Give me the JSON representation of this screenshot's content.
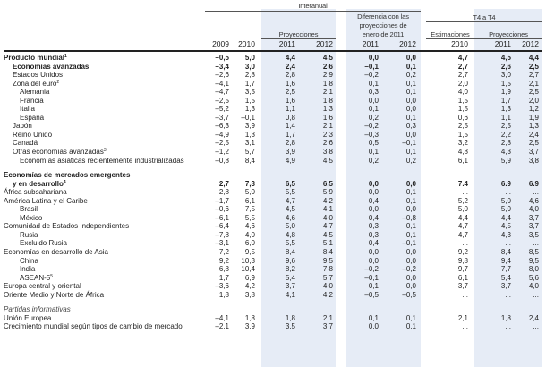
{
  "headers": {
    "interanual": "Interanual",
    "proyecciones_1": "Proyecciones",
    "diferencia_line1": "Diferencia con las",
    "diferencia_line2": "proyecciones de",
    "diferencia_line3": "enero de 2011",
    "t4": "T4 a T4",
    "estimaciones": "Estimaciones",
    "proyecciones_2": "Proyecciones",
    "years": [
      "2009",
      "2010",
      "2011",
      "2012",
      "2011",
      "2012",
      "2010",
      "2011",
      "2012"
    ]
  },
  "colors": {
    "shade": "#e6ecf6",
    "rule": "#222222"
  },
  "rows": [
    {
      "label": "Producto mundial",
      "sup": "1",
      "indent": 0,
      "bold": true,
      "values": [
        "–0,5",
        "5,0",
        "4,4",
        "4,5",
        "0,0",
        "0,0",
        "4,7",
        "4,5",
        "4,4"
      ]
    },
    {
      "label": "Economías avanzadas",
      "indent": 1,
      "bold": true,
      "values": [
        "–3,4",
        "3,0",
        "2,4",
        "2,6",
        "–0,1",
        "0,1",
        "2,7",
        "2,6",
        "2,5"
      ]
    },
    {
      "label": "Estados Unidos",
      "indent": 1,
      "values": [
        "–2,6",
        "2,8",
        "2,8",
        "2,9",
        "–0,2",
        "0,2",
        "2,7",
        "3,0",
        "2,7"
      ]
    },
    {
      "label": "Zona del euro",
      "sup": "2",
      "indent": 1,
      "values": [
        "–4,1",
        "1,7",
        "1,6",
        "1,8",
        "0,1",
        "0,1",
        "2,0",
        "1,5",
        "2,1"
      ]
    },
    {
      "label": "Alemania",
      "indent": 2,
      "values": [
        "–4,7",
        "3,5",
        "2,5",
        "2,1",
        "0,3",
        "0,1",
        "4,0",
        "1,9",
        "2,5"
      ]
    },
    {
      "label": "Francia",
      "indent": 2,
      "values": [
        "–2,5",
        "1,5",
        "1,6",
        "1,8",
        "0,0",
        "0,0",
        "1,5",
        "1,7",
        "2,0"
      ]
    },
    {
      "label": "Italia",
      "indent": 2,
      "values": [
        "–5,2",
        "1,3",
        "1,1",
        "1,3",
        "0,1",
        "0,0",
        "1,5",
        "1,3",
        "1,2"
      ]
    },
    {
      "label": "España",
      "indent": 2,
      "values": [
        "–3,7",
        "–0,1",
        "0,8",
        "1,6",
        "0,2",
        "0,1",
        "0,6",
        "1,1",
        "1,9"
      ]
    },
    {
      "label": "Japón",
      "indent": 1,
      "values": [
        "–6,3",
        "3,9",
        "1,4",
        "2,1",
        "–0,2",
        "0,3",
        "2,5",
        "2,5",
        "1,3"
      ]
    },
    {
      "label": "Reino Unido",
      "indent": 1,
      "values": [
        "–4,9",
        "1,3",
        "1,7",
        "2,3",
        "–0,3",
        "0,0",
        "1,5",
        "2,2",
        "2,4"
      ]
    },
    {
      "label": "Canadá",
      "indent": 1,
      "values": [
        "–2,5",
        "3,1",
        "2,8",
        "2,6",
        "0,5",
        "–0,1",
        "3,2",
        "2,8",
        "2,5"
      ]
    },
    {
      "label": "Otras economías avanzadas",
      "sup": "3",
      "indent": 1,
      "values": [
        "–1,2",
        "5,7",
        "3,9",
        "3,8",
        "0,1",
        "0,1",
        "4,8",
        "4,3",
        "3,7"
      ]
    },
    {
      "label": "Economías asiáticas recientemente industrializadas",
      "indent": 2,
      "values": [
        "–0,8",
        "8,4",
        "4,9",
        "4,5",
        "0,2",
        "0,2",
        "6,1",
        "5,9",
        "3,8"
      ]
    },
    {
      "gap": true
    },
    {
      "label": "Economías de mercados emergentes",
      "indent": 0,
      "bold": true,
      "values": [
        "",
        "",
        "",
        "",
        "",
        "",
        "",
        "",
        ""
      ]
    },
    {
      "label": "y en desarrollo",
      "sup": "4",
      "indent": 1,
      "bold": true,
      "values": [
        "2,7",
        "7,3",
        "6,5",
        "6,5",
        "0,0",
        "0,0",
        "7.4",
        "6.9",
        "6.9"
      ]
    },
    {
      "label": "África subsahariana",
      "indent": 0,
      "values": [
        "2,8",
        "5,0",
        "5,5",
        "5,9",
        "0,0",
        "0,1",
        "...",
        "...",
        "..."
      ]
    },
    {
      "label": "América Latina y el Caribe",
      "indent": 0,
      "values": [
        "–1,7",
        "6,1",
        "4,7",
        "4,2",
        "0,4",
        "0,1",
        "5,2",
        "5,0",
        "4,6"
      ]
    },
    {
      "label": "Brasil",
      "indent": 2,
      "values": [
        "–0,6",
        "7,5",
        "4,5",
        "4,1",
        "0,0",
        "0,0",
        "5,0",
        "5,0",
        "4,0"
      ]
    },
    {
      "label": "México",
      "indent": 2,
      "values": [
        "–6,1",
        "5,5",
        "4,6",
        "4,0",
        "0,4",
        "–0,8",
        "4,4",
        "4,4",
        "3,7"
      ]
    },
    {
      "label": "Comunidad de Estados Independientes",
      "indent": 0,
      "values": [
        "–6,4",
        "4,6",
        "5,0",
        "4,7",
        "0,3",
        "0,1",
        "4,7",
        "4,5",
        "3,7"
      ]
    },
    {
      "label": "Rusia",
      "indent": 2,
      "values": [
        "–7,8",
        "4,0",
        "4,8",
        "4,5",
        "0,3",
        "0,1",
        "4,7",
        "4,3",
        "3,5"
      ]
    },
    {
      "label": "Excluido Rusia",
      "indent": 2,
      "values": [
        "–3,1",
        "6,0",
        "5,5",
        "5,1",
        "0,4",
        "–0,1",
        "...",
        "...",
        "..."
      ]
    },
    {
      "label": "Economías en desarrollo de Asia",
      "indent": 0,
      "values": [
        "7,2",
        "9,5",
        "8,4",
        "8,4",
        "0,0",
        "0,0",
        "9,2",
        "8,4",
        "8,5"
      ]
    },
    {
      "label": "China",
      "indent": 2,
      "values": [
        "9,2",
        "10,3",
        "9,6",
        "9,5",
        "0,0",
        "0,0",
        "9,8",
        "9,4",
        "9,5"
      ]
    },
    {
      "label": "India",
      "indent": 2,
      "values": [
        "6,8",
        "10,4",
        "8,2",
        "7,8",
        "–0,2",
        "–0,2",
        "9,7",
        "7,7",
        "8,0"
      ]
    },
    {
      "label": "ASEAN-5",
      "sup": "5",
      "indent": 2,
      "values": [
        "1,7",
        "6,9",
        "5,4",
        "5,7",
        "–0,1",
        "0,0",
        "6,1",
        "5,4",
        "5,6"
      ]
    },
    {
      "label": "Europa central y oriental",
      "indent": 0,
      "values": [
        "–3,6",
        "4,2",
        "3,7",
        "4,0",
        "0,1",
        "0,0",
        "3,7",
        "3,7",
        "4,0"
      ]
    },
    {
      "label": "Oriente Medio y Norte de África",
      "indent": 0,
      "values": [
        "1,8",
        "3,8",
        "4,1",
        "4,2",
        "–0,5",
        "–0,5",
        "...",
        "...",
        "..."
      ]
    },
    {
      "gap": true
    },
    {
      "label": "Partidas informativas",
      "indent": 0,
      "italic": true,
      "values": [
        "",
        "",
        "",
        "",
        "",
        "",
        "",
        "",
        ""
      ]
    },
    {
      "label": "Unión Europea",
      "indent": 0,
      "values": [
        "–4,1",
        "1,8",
        "1,8",
        "2,1",
        "0,1",
        "0,1",
        "2,1",
        "1,8",
        "2,4"
      ]
    },
    {
      "label": "Crecimiento mundial según tipos de cambio de mercado",
      "indent": 0,
      "values": [
        "–2,1",
        "3,9",
        "3,5",
        "3,7",
        "0,0",
        "0,1",
        "...",
        "...",
        "..."
      ]
    }
  ]
}
